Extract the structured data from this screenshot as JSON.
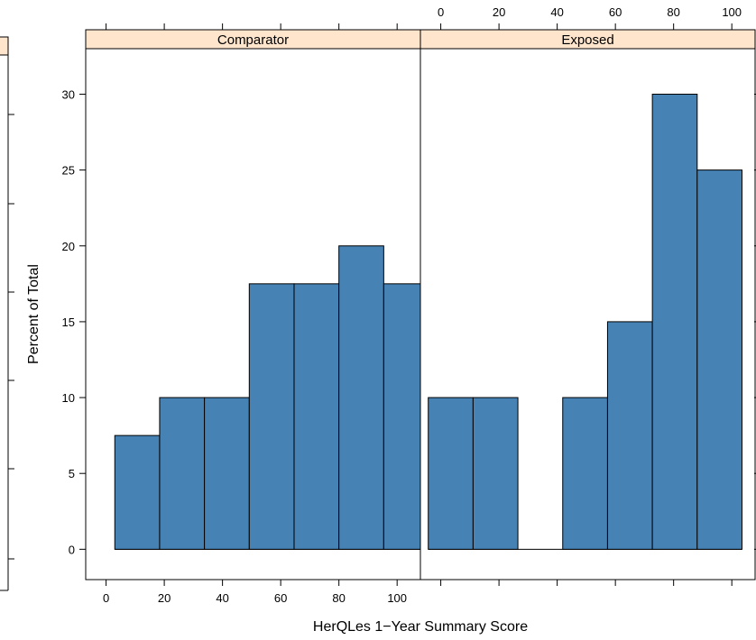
{
  "chart_data": {
    "type": "bar",
    "chart_kind": "histogram",
    "xlabel": "HerQLes 1−Year Summary Score",
    "ylabel": "Percent of Total",
    "xlim": [
      -7,
      108
    ],
    "ylim": [
      -2,
      33
    ],
    "x_ticks": [
      0,
      20,
      40,
      60,
      80,
      100
    ],
    "y_ticks": [
      0,
      5,
      10,
      15,
      20,
      25,
      30
    ],
    "bin_width": 15.4,
    "panels": [
      {
        "strip": "Comparator",
        "bins": [
          {
            "x0": 3.0,
            "x1": 18.4,
            "percent": 7.5
          },
          {
            "x0": 18.4,
            "x1": 33.8,
            "percent": 10
          },
          {
            "x0": 33.8,
            "x1": 49.2,
            "percent": 10
          },
          {
            "x0": 49.2,
            "x1": 64.6,
            "percent": 17.5
          },
          {
            "x0": 64.6,
            "x1": 80.0,
            "percent": 17.5
          },
          {
            "x0": 80.0,
            "x1": 95.4,
            "percent": 20
          },
          {
            "x0": 95.4,
            "x1": 110.8,
            "percent": 17.5
          }
        ]
      },
      {
        "strip": "Exposed",
        "bins": [
          {
            "x0": -4.3,
            "x1": 11.1,
            "percent": 10
          },
          {
            "x0": 11.1,
            "x1": 26.5,
            "percent": 10
          },
          {
            "x0": 26.5,
            "x1": 41.9,
            "percent": 0
          },
          {
            "x0": 41.9,
            "x1": 57.3,
            "percent": 10
          },
          {
            "x0": 57.3,
            "x1": 72.7,
            "percent": 15
          },
          {
            "x0": 72.7,
            "x1": 88.1,
            "percent": 30
          },
          {
            "x0": 88.1,
            "x1": 103.5,
            "percent": 25
          }
        ]
      }
    ],
    "colors": {
      "bar_fill": "#4682b4",
      "bar_stroke": "#000000",
      "strip_fill": "#ffe5cc",
      "frame": "#000000"
    },
    "bottom_axis_panel": "Comparator",
    "top_axis_panel": "Exposed"
  }
}
